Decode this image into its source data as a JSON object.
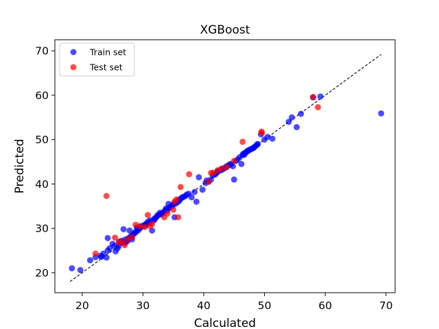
{
  "chart_data": {
    "type": "scatter",
    "title": "XGBoost",
    "xlabel": "Calculated",
    "ylabel": "Predicted",
    "xlim": [
      15.5,
      71.5
    ],
    "ylim": [
      15.5,
      72.5
    ],
    "xticks": [
      20,
      30,
      40,
      50,
      60,
      70
    ],
    "yticks": [
      20,
      30,
      40,
      50,
      60,
      70
    ],
    "grid": false,
    "legend": "top-left",
    "reference_line": {
      "x": [
        18,
        69.2
      ],
      "y": [
        18,
        69.2
      ],
      "style": "dashed",
      "color": "#000000"
    },
    "series": [
      {
        "name": "Train set",
        "color": "#0000ff",
        "points": [
          [
            18.3,
            21.0
          ],
          [
            19.7,
            20.6
          ],
          [
            21.3,
            22.8
          ],
          [
            22.2,
            23.5
          ],
          [
            23.0,
            23.8
          ],
          [
            23.5,
            24.3
          ],
          [
            24.0,
            23.4
          ],
          [
            24.2,
            25.0
          ],
          [
            24.5,
            25.5
          ],
          [
            24.2,
            27.8
          ],
          [
            25.0,
            26.5
          ],
          [
            25.5,
            24.8
          ],
          [
            25.8,
            25.5
          ],
          [
            26.0,
            26.0
          ],
          [
            26.3,
            26.8
          ],
          [
            26.5,
            27.2
          ],
          [
            26.8,
            29.8
          ],
          [
            27.0,
            26.7
          ],
          [
            27.3,
            27.0
          ],
          [
            27.5,
            27.3
          ],
          [
            27.8,
            29.5
          ],
          [
            28.0,
            28.2
          ],
          [
            28.2,
            27.5
          ],
          [
            28.5,
            28.8
          ],
          [
            28.8,
            29.2
          ],
          [
            29.0,
            30.2
          ],
          [
            29.2,
            29.5
          ],
          [
            29.5,
            30.0
          ],
          [
            29.8,
            30.5
          ],
          [
            30.0,
            30.5
          ],
          [
            30.3,
            30.8
          ],
          [
            30.5,
            31.0
          ],
          [
            30.8,
            31.5
          ],
          [
            31.0,
            31.2
          ],
          [
            31.2,
            31.8
          ],
          [
            31.5,
            29.5
          ],
          [
            31.8,
            32.0
          ],
          [
            32.0,
            32.3
          ],
          [
            32.2,
            32.5
          ],
          [
            32.5,
            33.0
          ],
          [
            32.8,
            33.5
          ],
          [
            33.0,
            33.2
          ],
          [
            33.3,
            33.5
          ],
          [
            33.5,
            33.8
          ],
          [
            33.8,
            34.5
          ],
          [
            34.0,
            34.0
          ],
          [
            34.2,
            35.5
          ],
          [
            34.5,
            34.8
          ],
          [
            34.8,
            35.0
          ],
          [
            35.0,
            35.5
          ],
          [
            35.2,
            32.5
          ],
          [
            35.5,
            35.8
          ],
          [
            35.8,
            36.0
          ],
          [
            36.0,
            36.3
          ],
          [
            36.3,
            36.8
          ],
          [
            36.5,
            37.0
          ],
          [
            37.0,
            37.3
          ],
          [
            37.5,
            37.8
          ],
          [
            38.0,
            37.0
          ],
          [
            38.5,
            38.2
          ],
          [
            38.8,
            36.0
          ],
          [
            39.2,
            41.5
          ],
          [
            39.8,
            38.7
          ],
          [
            40.3,
            40.2
          ],
          [
            40.8,
            40.5
          ],
          [
            41.2,
            41.0
          ],
          [
            41.5,
            42.0
          ],
          [
            42.0,
            42.3
          ],
          [
            42.3,
            42.8
          ],
          [
            42.6,
            43.0
          ],
          [
            43.0,
            43.2
          ],
          [
            43.4,
            43.5
          ],
          [
            43.8,
            44.0
          ],
          [
            44.1,
            44.2
          ],
          [
            44.5,
            44.5
          ],
          [
            44.8,
            44.0
          ],
          [
            45.0,
            41.0
          ],
          [
            45.3,
            45.2
          ],
          [
            45.6,
            45.5
          ],
          [
            45.9,
            46.0
          ],
          [
            46.2,
            44.5
          ],
          [
            46.5,
            46.8
          ],
          [
            46.8,
            47.0
          ],
          [
            47.1,
            47.3
          ],
          [
            47.4,
            47.6
          ],
          [
            47.7,
            47.8
          ],
          [
            48.0,
            48.0
          ],
          [
            48.3,
            48.3
          ],
          [
            48.6,
            48.6
          ],
          [
            48.9,
            49.0
          ],
          [
            49.4,
            51.2
          ],
          [
            50.0,
            50.0
          ],
          [
            50.5,
            50.6
          ],
          [
            51.3,
            50.2
          ],
          [
            54.0,
            54.0
          ],
          [
            54.5,
            55.0
          ],
          [
            55.3,
            52.8
          ],
          [
            56.0,
            55.8
          ],
          [
            58.0,
            59.5
          ],
          [
            59.2,
            59.7
          ],
          [
            69.2,
            55.9
          ],
          [
            23.2,
            23.6
          ],
          [
            25.3,
            26.0
          ],
          [
            26.1,
            27.0
          ],
          [
            27.1,
            27.5
          ],
          [
            28.3,
            28.5
          ],
          [
            29.1,
            30.0
          ],
          [
            29.6,
            30.3
          ],
          [
            30.6,
            30.9
          ],
          [
            31.3,
            31.4
          ],
          [
            31.9,
            31.9
          ],
          [
            32.4,
            32.9
          ],
          [
            33.1,
            33.3
          ],
          [
            33.7,
            34.1
          ],
          [
            34.3,
            34.6
          ],
          [
            34.9,
            35.2
          ],
          [
            35.4,
            35.6
          ],
          [
            35.9,
            36.4
          ],
          [
            36.7,
            37.1
          ],
          [
            37.2,
            37.6
          ],
          [
            42.2,
            42.7
          ],
          [
            42.9,
            43.3
          ],
          [
            43.6,
            43.8
          ],
          [
            44.3,
            44.4
          ],
          [
            46.4,
            46.5
          ],
          [
            46.7,
            46.6
          ],
          [
            47.0,
            47.2
          ],
          [
            47.3,
            47.5
          ],
          [
            47.6,
            47.7
          ],
          [
            48.2,
            48.1
          ],
          [
            48.8,
            48.9
          ],
          [
            30.4,
            30.7
          ],
          [
            36.1,
            36.5
          ],
          [
            40.5,
            40.8
          ],
          [
            41.8,
            42.1
          ],
          [
            26.6,
            26.9
          ],
          [
            27.6,
            27.8
          ],
          [
            28.1,
            28.0
          ],
          [
            28.7,
            29.0
          ],
          [
            32.7,
            33.1
          ]
        ]
      },
      {
        "name": "Test set",
        "color": "#ff0000",
        "points": [
          [
            22.2,
            24.3
          ],
          [
            24.0,
            37.3
          ],
          [
            25.4,
            27.9
          ],
          [
            26.0,
            26.8
          ],
          [
            26.5,
            27.0
          ],
          [
            27.0,
            26.2
          ],
          [
            27.5,
            27.5
          ],
          [
            28.2,
            28.0
          ],
          [
            28.8,
            30.8
          ],
          [
            29.5,
            30.5
          ],
          [
            30.3,
            30.3
          ],
          [
            30.8,
            33.0
          ],
          [
            31.2,
            30.5
          ],
          [
            31.5,
            31.0
          ],
          [
            33.5,
            32.5
          ],
          [
            34.0,
            33.3
          ],
          [
            35.0,
            34.2
          ],
          [
            35.2,
            36.0
          ],
          [
            35.5,
            36.5
          ],
          [
            35.8,
            32.5
          ],
          [
            36.2,
            39.3
          ],
          [
            37.6,
            42.2
          ],
          [
            40.8,
            40.5
          ],
          [
            41.2,
            42.5
          ],
          [
            41.6,
            42.5
          ],
          [
            42.3,
            43.1
          ],
          [
            43.0,
            43.5
          ],
          [
            43.8,
            43.8
          ],
          [
            45.0,
            45.2
          ],
          [
            46.4,
            49.5
          ],
          [
            49.5,
            51.8
          ],
          [
            49.6,
            51.5
          ],
          [
            58.0,
            59.6
          ],
          [
            58.8,
            57.3
          ]
        ]
      }
    ]
  }
}
